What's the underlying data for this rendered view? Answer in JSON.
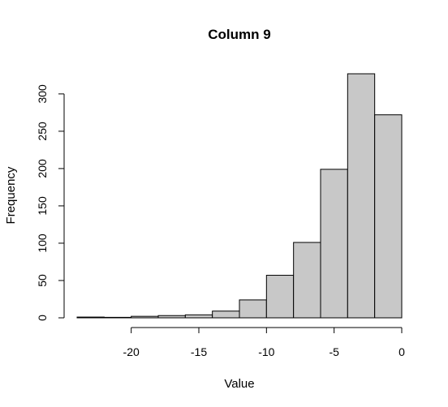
{
  "chart_data": {
    "type": "bar",
    "subtype": "histogram",
    "title": "Column 9",
    "xlabel": "Value",
    "ylabel": "Frequency",
    "bins": [
      {
        "start": -24,
        "end": -22,
        "count": 1
      },
      {
        "start": -22,
        "end": -20,
        "count": 0
      },
      {
        "start": -20,
        "end": -18,
        "count": 2
      },
      {
        "start": -18,
        "end": -16,
        "count": 3
      },
      {
        "start": -16,
        "end": -14,
        "count": 4
      },
      {
        "start": -14,
        "end": -12,
        "count": 9
      },
      {
        "start": -12,
        "end": -10,
        "count": 24
      },
      {
        "start": -10,
        "end": -8,
        "count": 57
      },
      {
        "start": -8,
        "end": -6,
        "count": 101
      },
      {
        "start": -6,
        "end": -4,
        "count": 199
      },
      {
        "start": -4,
        "end": -2,
        "count": 327
      },
      {
        "start": -2,
        "end": 0,
        "count": 272
      }
    ],
    "xticks": [
      -20,
      -15,
      -10,
      -5,
      0
    ],
    "xtick_labels": [
      "-20",
      "-15",
      "-10",
      "-5",
      "0"
    ],
    "yticks": [
      0,
      50,
      100,
      150,
      200,
      250,
      300
    ],
    "ytick_labels": [
      "0",
      "50",
      "100",
      "150",
      "200",
      "250",
      "300"
    ],
    "xlim": [
      -24,
      0
    ],
    "ylim": [
      0,
      327
    ],
    "grid": false,
    "bar_fill": "#c8c8c8",
    "bar_stroke": "#000000"
  }
}
